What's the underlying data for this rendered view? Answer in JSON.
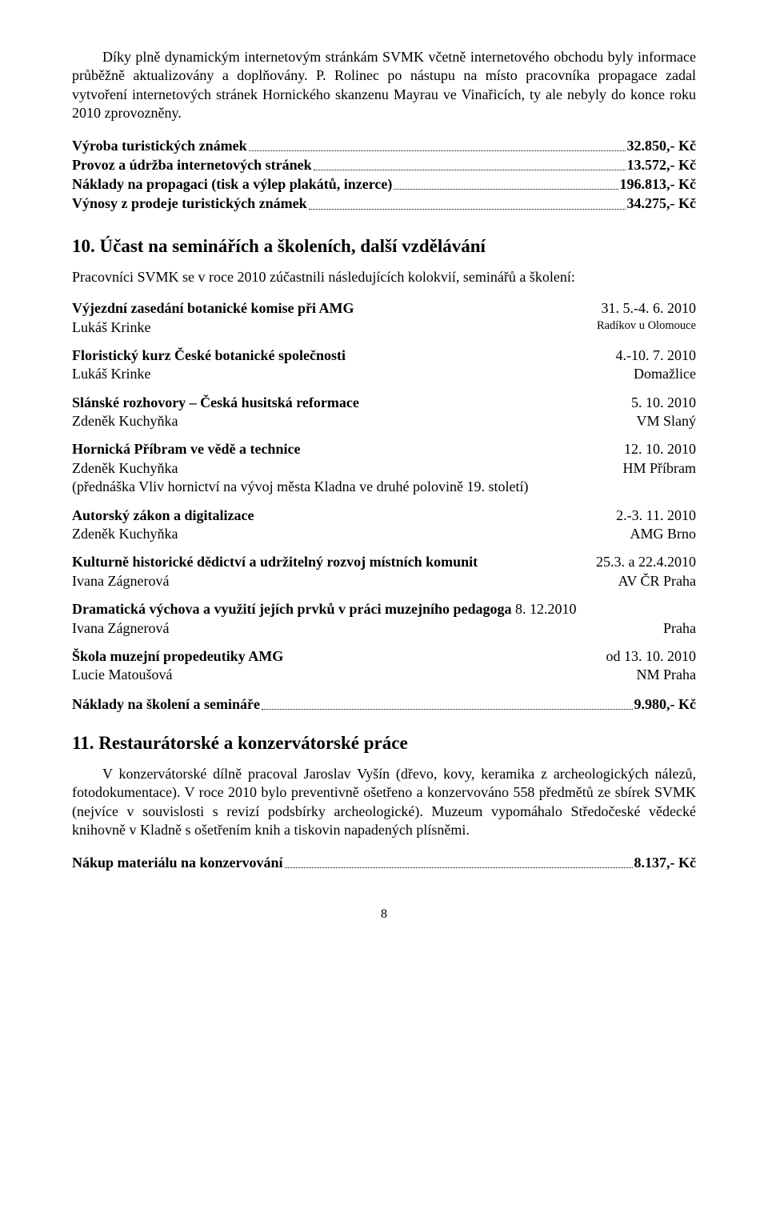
{
  "para1": "Díky plně dynamickým internetovým stránkám SVMK včetně internetového obchodu byly informace průběžně aktualizovány a doplňovány. P. Rolinec po nástupu na místo pracovníka propagace zadal vytvoření internetových stránek Hornického skanzenu Mayrau ve Vinařicích, ty ale nebyly do konce roku 2010 zprovozněny.",
  "costs": [
    {
      "label": "Výroba turistických známek",
      "value": " 32.850,- Kč"
    },
    {
      "label": "Provoz a údržba internetových stránek",
      "value": " 13.572,- Kč"
    },
    {
      "label": "Náklady na propagaci (tisk a výlep plakátů, inzerce)",
      "value": "196.813,- Kč"
    },
    {
      "label": "Výnosy z prodeje turistických známek",
      "value": "34.275,- Kč"
    }
  ],
  "section10": {
    "title": "10. Účast na seminářích a školeních, další vzdělávání",
    "intro": "Pracovníci SVMK se v roce 2010 zúčastnili následujících kolokvií, seminářů a školení:",
    "events": [
      {
        "title": "Výjezdní zasedání botanické komise při AMG",
        "date": "31. 5.-4. 6. 2010",
        "who": "Lukáš Krinke",
        "where": "Radíkov u Olomouce",
        "subRight": true
      },
      {
        "title": "Floristický kurz České botanické společnosti",
        "date": "4.-10. 7. 2010",
        "who": "Lukáš Krinke",
        "where": "Domažlice"
      },
      {
        "title": "Slánské rozhovory – Česká husitská reformace",
        "date": "5. 10. 2010",
        "who": "Zdeněk Kuchyňka",
        "where": "VM Slaný"
      },
      {
        "title": "Hornická Příbram ve vědě a technice",
        "date": "12. 10. 2010",
        "who": "Zdeněk Kuchyňka",
        "where": "HM Příbram",
        "note": "(přednáška Vliv hornictví na vývoj města Kladna ve druhé polovině 19. století)"
      },
      {
        "title": "Autorský zákon a digitalizace",
        "date": "2.-3. 11. 2010",
        "who": "Zdeněk Kuchyňka",
        "where": "AMG Brno"
      },
      {
        "title": "Kulturně historické dědictví a udržitelný rozvoj místních komunit",
        "date": "25.3. a 22.4.2010",
        "who": "Ivana Zágnerová",
        "where": "AV ČR Praha"
      },
      {
        "title": "Dramatická výchova a využití jejích prvků v práci muzejního pedagoga",
        "date": "8. 12.2010",
        "who": "Ivana Zágnerová",
        "where": "Praha",
        "inlineDate": true
      },
      {
        "title": "Škola muzejní propedeutiky AMG",
        "date": "od 13. 10. 2010",
        "who": "Lucie Matoušová",
        "where": "NM Praha"
      }
    ],
    "cost": {
      "label": "Náklady na školení a semináře",
      "value": "9.980,- Kč"
    }
  },
  "section11": {
    "title": "11. Restaurátorské a konzervátorské práce",
    "para": "V konzervátorské dílně pracoval Jaroslav Vyšín (dřevo, kovy, keramika z archeologických nálezů, fotodokumentace). V roce 2010 bylo preventivně ošetřeno a konzervováno 558 předmětů ze sbírek SVMK (nejvíce v souvislosti s revizí podsbírky archeologické). Muzeum vypomáhalo Středočeské vědecké knihovně v Kladně s ošetřením knih a tiskovin napadených plísněmi.",
    "cost": {
      "label": "Nákup materiálu na konzervování",
      "value": " 8.137,- Kč"
    }
  },
  "pageNumber": "8"
}
